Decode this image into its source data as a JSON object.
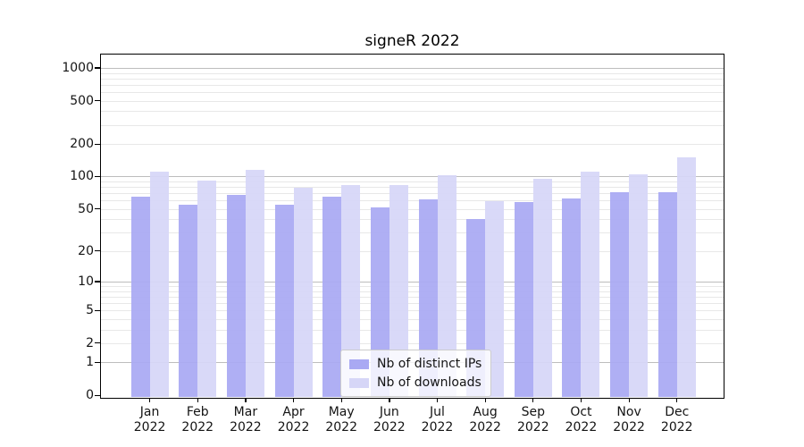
{
  "title": "signeR 2022",
  "chart_data": {
    "type": "bar",
    "title": "signeR 2022",
    "categories": [
      "Jan",
      "Feb",
      "Mar",
      "Apr",
      "May",
      "Jun",
      "Jul",
      "Aug",
      "Sep",
      "Oct",
      "Nov",
      "Dec"
    ],
    "category_year": "2022",
    "series": [
      {
        "name": "Nb of distinct IPs",
        "color": "#a9a9f3",
        "values": [
          65,
          55,
          68,
          55,
          65,
          52,
          61,
          40,
          58,
          62,
          71,
          72
        ]
      },
      {
        "name": "Nb of downloads",
        "color": "#d6d6f7",
        "values": [
          110,
          92,
          116,
          79,
          84,
          84,
          103,
          59,
          95,
          112,
          105,
          150
        ]
      }
    ],
    "xlabel": "",
    "ylabel": "",
    "yscale": "log10(1+y)",
    "yticks": [
      0,
      1,
      2,
      5,
      10,
      20,
      50,
      100,
      200,
      500,
      1000
    ],
    "ylim": [
      0,
      1320
    ],
    "grid": true,
    "legend_position": "inside-bottom-center"
  },
  "colors": {
    "bar_ips": "#a9a9f3",
    "bar_downloads": "#d6d6f7",
    "grid_minor": "#e8e8e8",
    "grid_major": "#bdbdbd",
    "spine": "#000000",
    "text": "#141414",
    "legend_border": "#cccccc"
  }
}
